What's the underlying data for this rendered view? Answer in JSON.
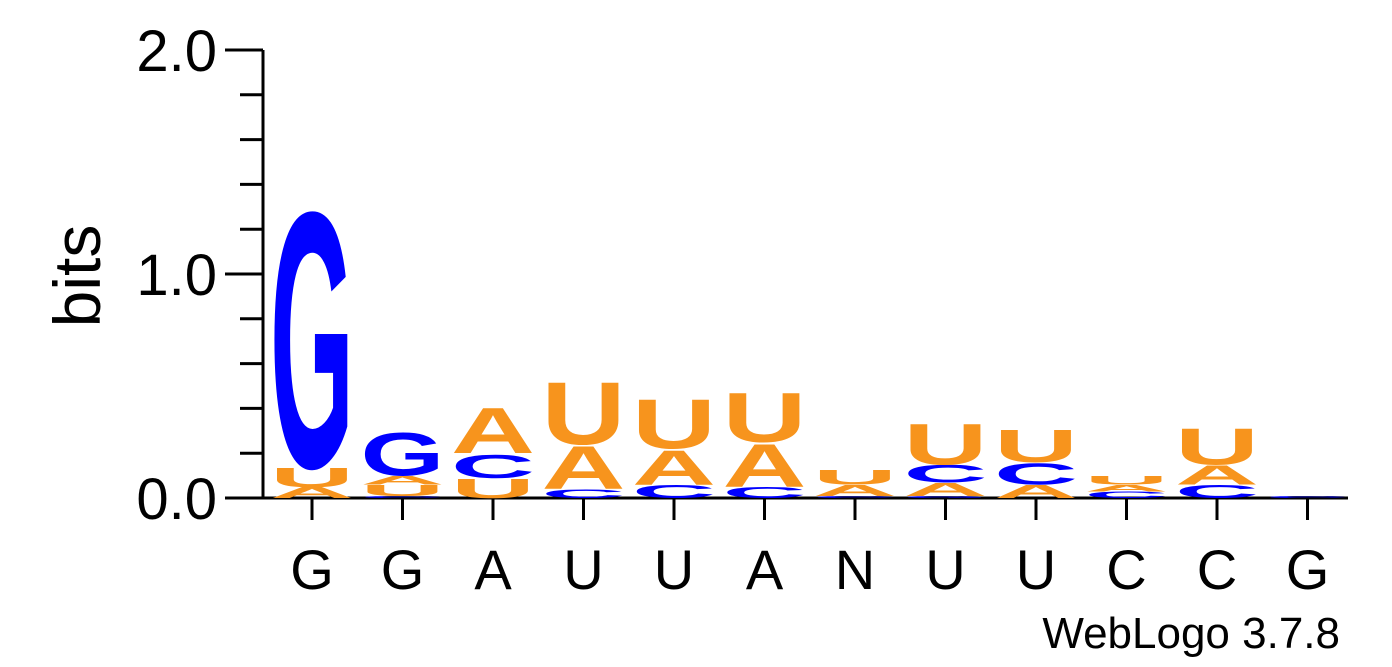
{
  "chart_data": {
    "type": "sequence-logo",
    "ylabel": "bits",
    "ylim": [
      0,
      2
    ],
    "yticks": [
      "0.0",
      "1.0",
      "2.0"
    ],
    "footer": "WebLogo 3.7.8",
    "colors": {
      "A": "#f7941d",
      "U": "#f7941d",
      "C": "#0000ff",
      "G": "#0000ff"
    },
    "positions": [
      {
        "label": "G",
        "stack": [
          [
            "A",
            0.05
          ],
          [
            "U",
            0.09
          ],
          [
            "G",
            1.19
          ]
        ]
      },
      {
        "label": "G",
        "stack": [
          [
            "C",
            0.01
          ],
          [
            "U",
            0.05
          ],
          [
            "A",
            0.04
          ],
          [
            "G",
            0.2
          ]
        ]
      },
      {
        "label": "A",
        "stack": [
          [
            "U",
            0.09
          ],
          [
            "C",
            0.11
          ],
          [
            "A",
            0.21
          ]
        ]
      },
      {
        "label": "U",
        "stack": [
          [
            "C",
            0.04
          ],
          [
            "A",
            0.2
          ],
          [
            "U",
            0.29
          ]
        ]
      },
      {
        "label": "U",
        "stack": [
          [
            "C",
            0.06
          ],
          [
            "A",
            0.16
          ],
          [
            "U",
            0.23
          ]
        ]
      },
      {
        "label": "A",
        "stack": [
          [
            "C",
            0.05
          ],
          [
            "A",
            0.2
          ],
          [
            "U",
            0.23
          ]
        ]
      },
      {
        "label": "N",
        "stack": [
          [
            "C",
            0.01
          ],
          [
            "A",
            0.05
          ],
          [
            "U",
            0.07
          ]
        ]
      },
      {
        "label": "U",
        "stack": [
          [
            "G",
            0.01
          ],
          [
            "A",
            0.06
          ],
          [
            "C",
            0.08
          ],
          [
            "U",
            0.19
          ]
        ]
      },
      {
        "label": "U",
        "stack": [
          [
            "A",
            0.06
          ],
          [
            "C",
            0.1
          ],
          [
            "U",
            0.15
          ]
        ]
      },
      {
        "label": "C",
        "stack": [
          [
            "C",
            0.03
          ],
          [
            "A",
            0.03
          ],
          [
            "U",
            0.04
          ]
        ]
      },
      {
        "label": "C",
        "stack": [
          [
            "C",
            0.06
          ],
          [
            "A",
            0.09
          ],
          [
            "U",
            0.17
          ]
        ]
      },
      {
        "label": "G",
        "stack": [
          [
            "C",
            0.01
          ]
        ]
      }
    ]
  }
}
